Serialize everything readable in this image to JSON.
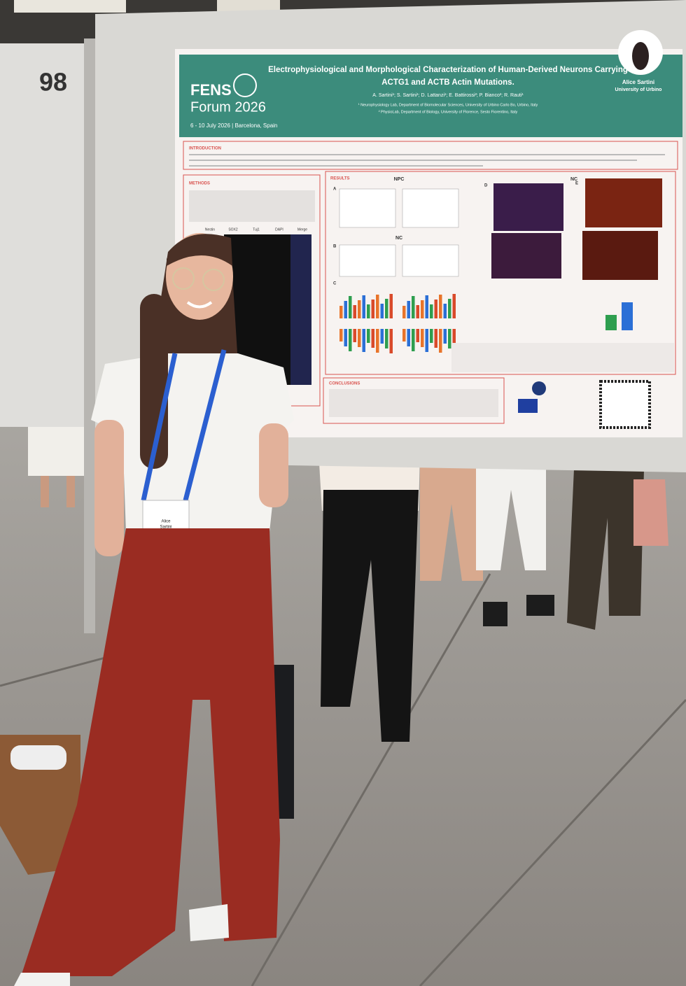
{
  "board_number": "98",
  "poster": {
    "logo": {
      "name": "FENS",
      "event": "Forum 2026",
      "dates": "6 - 10 July 2026 | Barcelona, Spain"
    },
    "title": [
      "Electrophysiological and Morphological Characterization of Human-Derived Neurons Carrying",
      "ACTG1 and ACTB Actin Mutations."
    ],
    "authors": "A. Sartini¹; S. Sartini¹; D. Lattanzi¹; E. Battirossi²; P. Bianco²; R. Rauti¹",
    "affiliations": [
      "¹ Neurophysiology Lab, Department of Biomolecular Sciences, University of Urbino Carlo Bo, Urbino, Italy",
      "² PhysioLab, Department of Biology, University of Florence, Sesto Fiorentino, Italy"
    ],
    "presenter": {
      "name": "Alice Sartini",
      "affiliation": "University of Urbino"
    },
    "sections": [
      "INTRODUCTION",
      "METHODS",
      "RESULTS",
      "CONCLUSIONS"
    ],
    "panels": [
      "A",
      "B",
      "C",
      "D",
      "E"
    ],
    "groups": [
      "NPC",
      "NC"
    ],
    "methods_columns": [
      "Nestin",
      "SOX2",
      "Tuj1",
      "DAPI",
      "Merge"
    ]
  },
  "badge": {
    "name": [
      "Alice",
      "Sartini"
    ]
  }
}
